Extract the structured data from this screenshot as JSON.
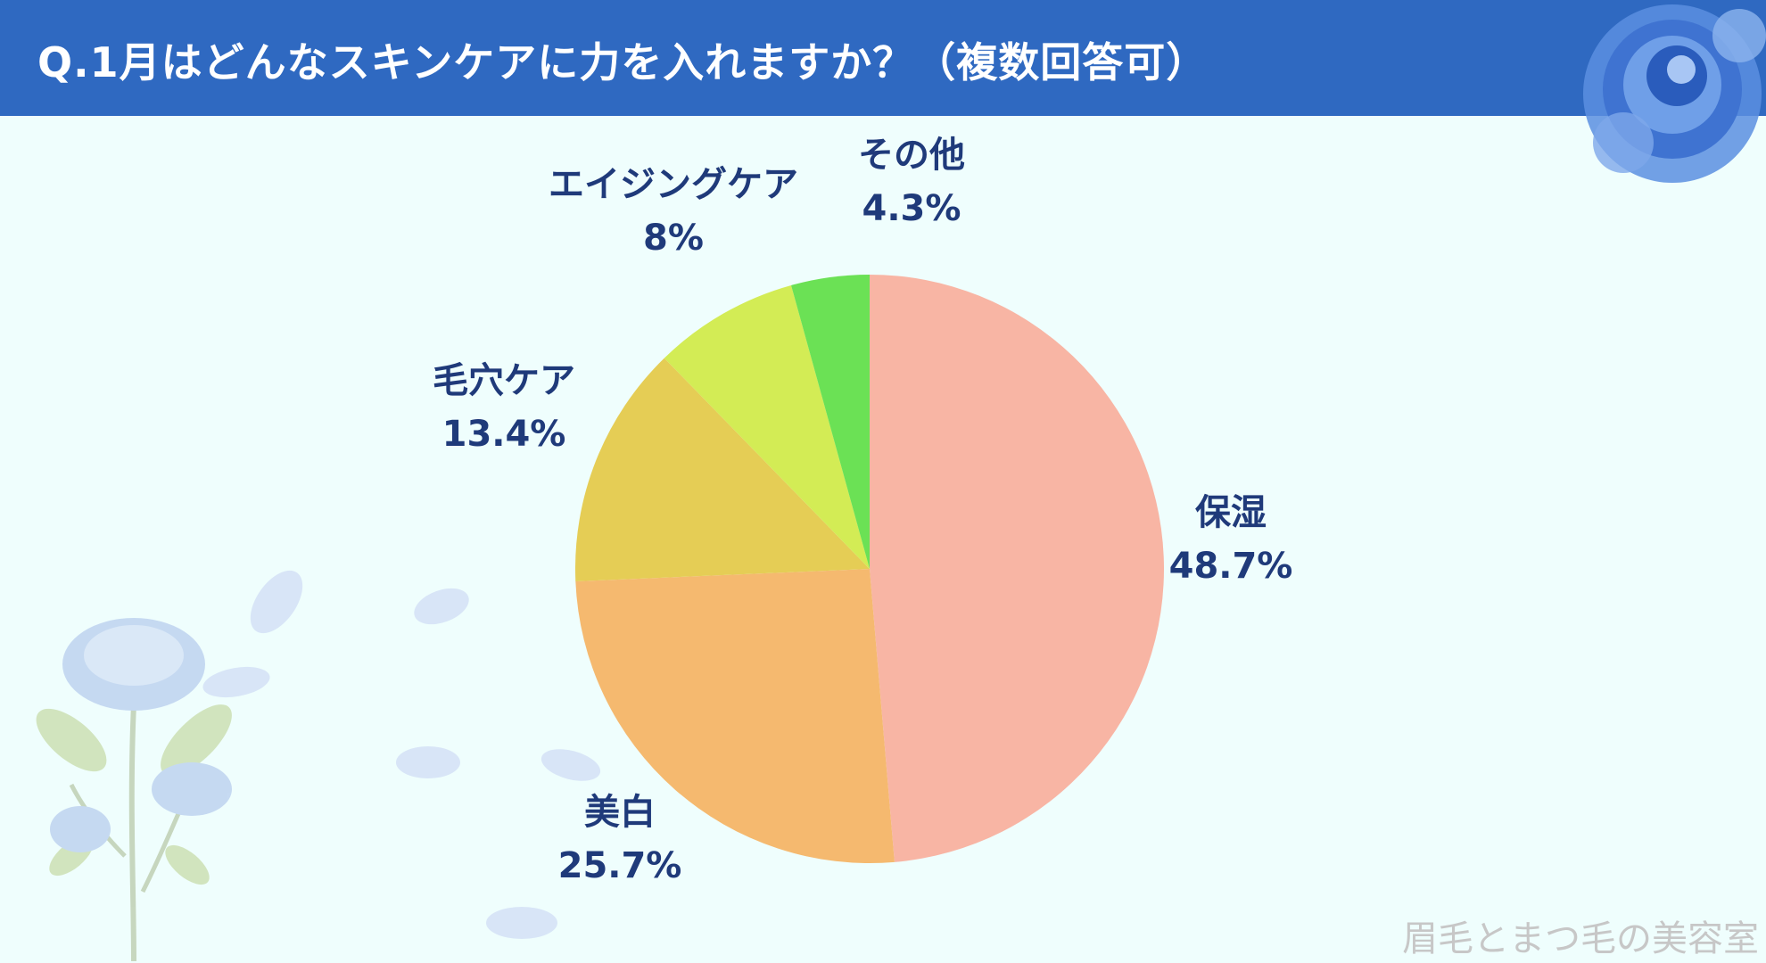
{
  "header": {
    "title": "Q.1月はどんなスキンケアに力を入れますか？（複数回答可）",
    "background": "#2f69c1"
  },
  "watermark": "眉毛とまつ毛の美容室",
  "colors": {
    "background": "#effefd",
    "label_text": "#1f3a7a"
  },
  "chart_data": {
    "type": "pie",
    "start_angle_deg": 0,
    "direction": "clockwise",
    "slices": [
      {
        "label": "保湿",
        "value": 48.7,
        "value_label": "48.7%",
        "color": "#f8b5a4"
      },
      {
        "label": "美白",
        "value": 25.7,
        "value_label": "25.7%",
        "color": "#f5b96f"
      },
      {
        "label": "毛穴ケア",
        "value": 13.4,
        "value_label": "13.4%",
        "color": "#e5cd55"
      },
      {
        "label": "エイジングケア",
        "value": 8,
        "value_label": "8%",
        "color": "#d3ec55"
      },
      {
        "label": "その他",
        "value": 4.3,
        "value_label": "4.3%",
        "color": "#6be155"
      }
    ]
  }
}
